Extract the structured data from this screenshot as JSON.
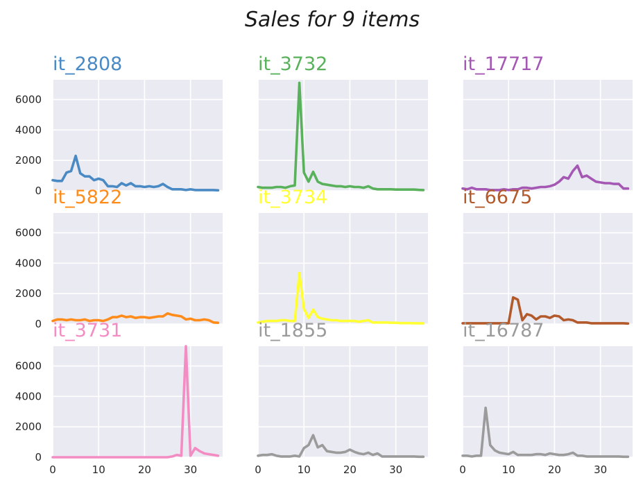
{
  "chart_data": {
    "type": "line",
    "title": "Sales for 9 items",
    "layout": "3x3 small multiples, shared x and y axes",
    "xlim": [
      0,
      37
    ],
    "ylim": [
      0,
      7300
    ],
    "xticks": [
      0,
      10,
      20,
      30
    ],
    "yticks": [
      0,
      2000,
      4000,
      6000
    ],
    "grid": true,
    "x": [
      0,
      1,
      2,
      3,
      4,
      5,
      6,
      7,
      8,
      9,
      10,
      11,
      12,
      13,
      14,
      15,
      16,
      17,
      18,
      19,
      20,
      21,
      22,
      23,
      24,
      25,
      26,
      27,
      28,
      29,
      30,
      31,
      32,
      33,
      34,
      35,
      36
    ],
    "series": [
      {
        "name": "it_2808",
        "color": "#4a8ac4",
        "values": [
          700,
          650,
          650,
          1200,
          1300,
          2300,
          1150,
          950,
          950,
          700,
          800,
          700,
          300,
          300,
          250,
          500,
          350,
          500,
          300,
          300,
          250,
          300,
          250,
          300,
          450,
          250,
          100,
          100,
          100,
          50,
          100,
          50,
          50,
          50,
          50,
          50,
          30
        ]
      },
      {
        "name": "it_3732",
        "color": "#59b15b",
        "values": [
          250,
          200,
          200,
          200,
          250,
          250,
          200,
          300,
          350,
          7100,
          1200,
          600,
          1250,
          600,
          450,
          400,
          350,
          300,
          300,
          250,
          300,
          250,
          250,
          200,
          300,
          150,
          100,
          100,
          100,
          100,
          80,
          80,
          80,
          80,
          80,
          60,
          50
        ]
      },
      {
        "name": "it_17717",
        "color": "#a458b3",
        "values": [
          150,
          100,
          200,
          100,
          100,
          100,
          50,
          50,
          50,
          100,
          50,
          100,
          100,
          200,
          200,
          150,
          200,
          250,
          250,
          300,
          400,
          600,
          900,
          800,
          1300,
          1650,
          900,
          1000,
          800,
          600,
          550,
          500,
          500,
          450,
          450,
          150,
          150
        ]
      },
      {
        "name": "it_5822",
        "color": "#ff8c1a",
        "values": [
          200,
          300,
          300,
          250,
          300,
          250,
          250,
          300,
          200,
          250,
          250,
          200,
          300,
          450,
          450,
          550,
          450,
          500,
          400,
          450,
          450,
          400,
          450,
          500,
          500,
          700,
          600,
          550,
          500,
          300,
          350,
          250,
          250,
          300,
          250,
          100,
          80
        ]
      },
      {
        "name": "it_3734",
        "color": "#ffff33",
        "values": [
          100,
          150,
          200,
          200,
          200,
          250,
          250,
          200,
          200,
          3350,
          1000,
          400,
          950,
          450,
          350,
          300,
          250,
          250,
          200,
          200,
          200,
          200,
          150,
          200,
          250,
          100,
          100,
          100,
          100,
          80,
          80,
          60,
          60,
          60,
          50,
          50,
          40
        ]
      },
      {
        "name": "it_6675",
        "color": "#b25a2c",
        "values": [
          50,
          50,
          50,
          50,
          50,
          50,
          50,
          50,
          50,
          50,
          50,
          1750,
          1600,
          250,
          650,
          550,
          300,
          500,
          500,
          400,
          550,
          500,
          250,
          300,
          250,
          100,
          100,
          100,
          50,
          50,
          50,
          50,
          50,
          50,
          50,
          50,
          30
        ]
      },
      {
        "name": "it_3731",
        "color": "#f48cc4",
        "values": [
          0,
          0,
          0,
          0,
          0,
          0,
          0,
          0,
          0,
          0,
          0,
          0,
          0,
          0,
          0,
          0,
          0,
          0,
          0,
          0,
          0,
          0,
          0,
          0,
          0,
          0,
          50,
          150,
          100,
          7300,
          100,
          600,
          400,
          250,
          200,
          150,
          100
        ]
      },
      {
        "name": "it_1855",
        "color": "#9b9b9b",
        "values": [
          100,
          150,
          150,
          200,
          100,
          50,
          50,
          50,
          100,
          50,
          600,
          800,
          1450,
          650,
          800,
          400,
          350,
          300,
          300,
          350,
          500,
          350,
          250,
          200,
          300,
          150,
          250,
          50,
          50,
          50,
          50,
          50,
          50,
          50,
          50,
          30,
          30
        ]
      },
      {
        "name": "it_16787",
        "color": "#9b9b9b",
        "values": [
          100,
          100,
          50,
          100,
          100,
          3250,
          800,
          450,
          300,
          250,
          200,
          350,
          150,
          150,
          150,
          150,
          200,
          200,
          150,
          250,
          200,
          150,
          150,
          200,
          300,
          100,
          100,
          50,
          50,
          50,
          50,
          50,
          50,
          50,
          50,
          30,
          30
        ]
      }
    ]
  }
}
